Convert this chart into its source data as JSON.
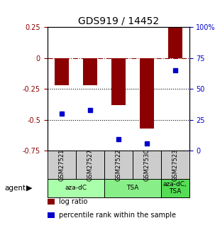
{
  "title": "GDS919 / 14452",
  "samples": [
    "GSM27521",
    "GSM27527",
    "GSM27522",
    "GSM27530",
    "GSM27523"
  ],
  "log_ratio": [
    -0.22,
    -0.22,
    -0.38,
    -0.57,
    0.25
  ],
  "percentile_rank": [
    30,
    33,
    9,
    6,
    65
  ],
  "bar_color": "#8B0000",
  "dot_color": "#0000CD",
  "ylim_left": [
    -0.75,
    0.25
  ],
  "ylim_right": [
    0,
    100
  ],
  "yticks_left": [
    -0.75,
    -0.5,
    -0.25,
    0,
    0.25
  ],
  "yticks_right": [
    0,
    25,
    50,
    75,
    100
  ],
  "ytick_labels_left": [
    "-0.75",
    "-0.5",
    "-0.25",
    "0",
    "0.25"
  ],
  "ytick_labels_right": [
    "0",
    "25",
    "50",
    "75",
    "100%"
  ],
  "hlines": [
    -0.25,
    -0.5
  ],
  "zero_line": 0,
  "agent_groups": [
    {
      "label": "aza-dC",
      "start": 0,
      "end": 2,
      "color": "#aaffaa"
    },
    {
      "label": "TSA",
      "start": 2,
      "end": 4,
      "color": "#88ee88"
    },
    {
      "label": "aza-dC,\nTSA",
      "start": 4,
      "end": 5,
      "color": "#55dd55"
    }
  ],
  "agent_label": "agent",
  "legend": [
    {
      "color": "#8B0000",
      "label": "log ratio"
    },
    {
      "color": "#0000CD",
      "label": "percentile rank within the sample"
    }
  ],
  "bar_width": 0.5,
  "background_color": "#ffffff",
  "plot_bg": "#ffffff",
  "sample_box_color": "#cccccc",
  "title_fontsize": 10,
  "tick_fontsize": 7,
  "legend_fontsize": 7
}
